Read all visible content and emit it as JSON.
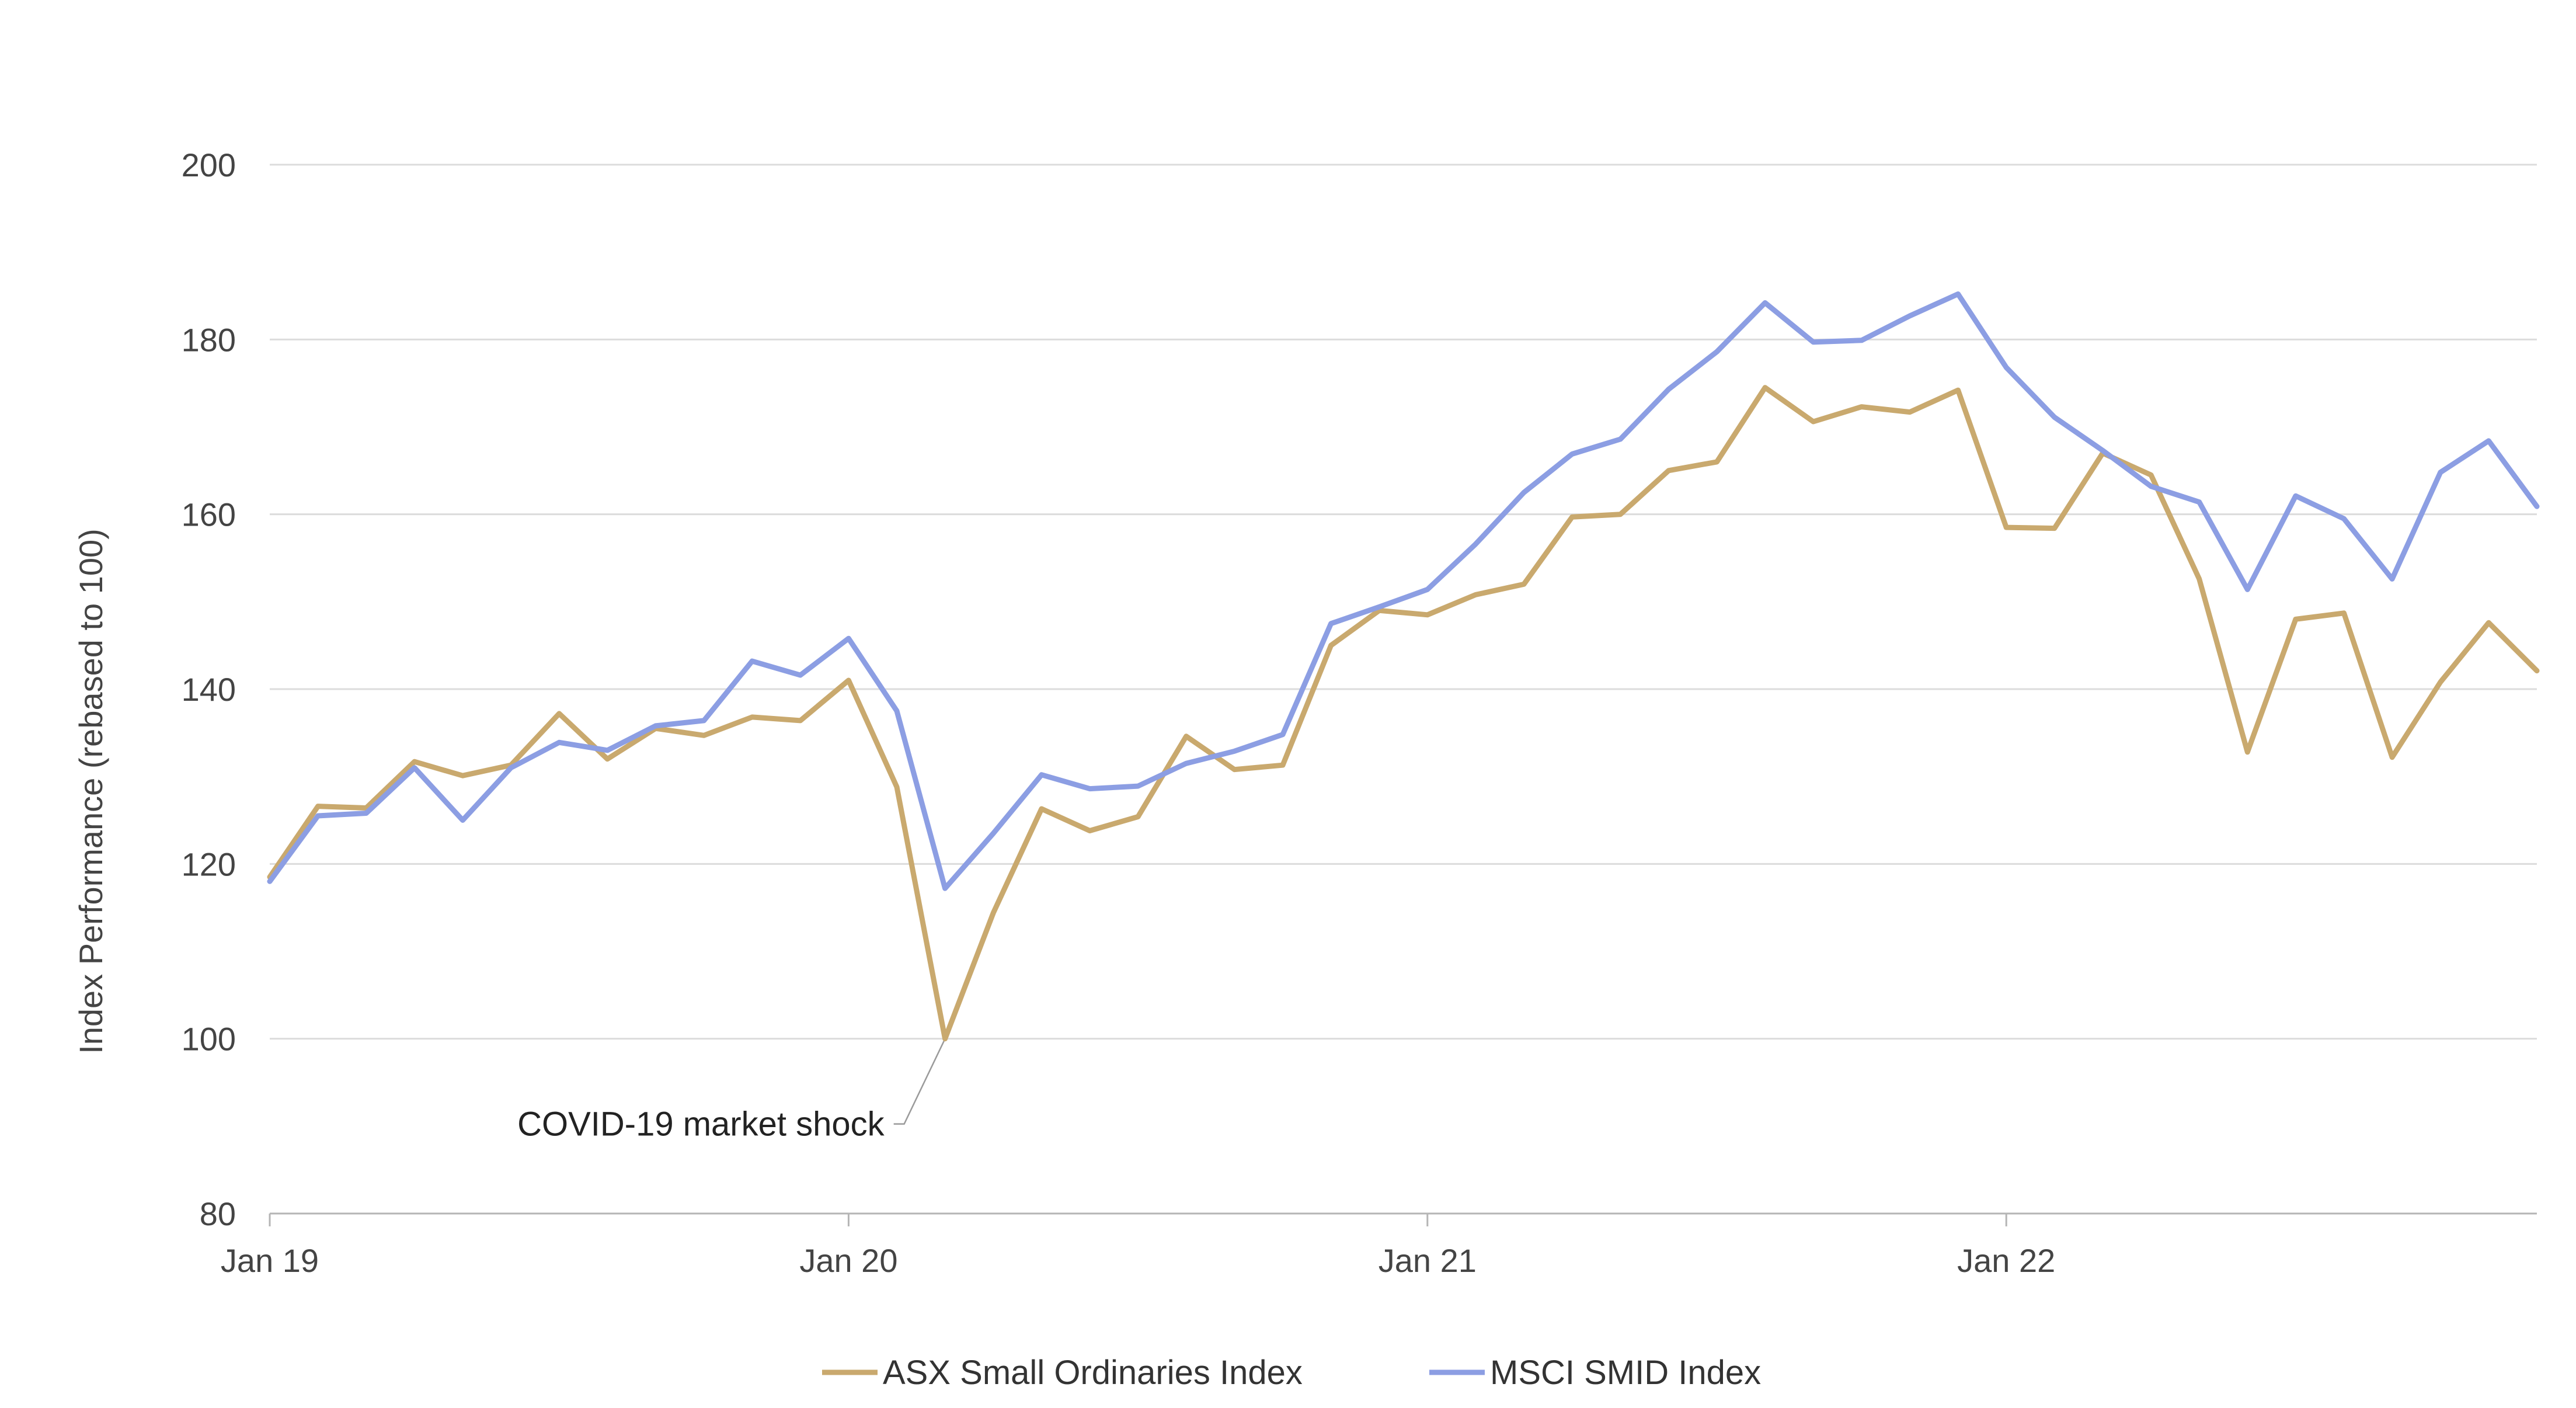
{
  "chart_data": {
    "type": "line",
    "title": "",
    "xlabel": "",
    "ylabel": "Index Performance (rebased to 100)",
    "ylim": [
      80,
      200
    ],
    "yticks": [
      80,
      100,
      120,
      140,
      160,
      180,
      200
    ],
    "xlim": [
      "2019-01",
      "2022-12"
    ],
    "xticks": [
      {
        "x": "2019-01",
        "label": "Jan 19"
      },
      {
        "x": "2020-01",
        "label": "Jan 20"
      },
      {
        "x": "2021-01",
        "label": "Jan 21"
      },
      {
        "x": "2022-01",
        "label": "Jan 22"
      }
    ],
    "grid": true,
    "legend": "bottom",
    "x": [
      "2019-01",
      "2019-02",
      "2019-03",
      "2019-04",
      "2019-05",
      "2019-06",
      "2019-07",
      "2019-08",
      "2019-09",
      "2019-10",
      "2019-11",
      "2019-12",
      "2020-01",
      "2020-02",
      "2020-03",
      "2020-04",
      "2020-05",
      "2020-06",
      "2020-07",
      "2020-08",
      "2020-09",
      "2020-10",
      "2020-11",
      "2020-12",
      "2021-01",
      "2021-02",
      "2021-03",
      "2021-04",
      "2021-05",
      "2021-06",
      "2021-07",
      "2021-08",
      "2021-09",
      "2021-10",
      "2021-11",
      "2021-12",
      "2022-01",
      "2022-02",
      "2022-03",
      "2022-04",
      "2022-05",
      "2022-06",
      "2022-07",
      "2022-08",
      "2022-09",
      "2022-10",
      "2022-11",
      "2022-12"
    ],
    "series": [
      {
        "name": "ASX Small Ordinaries Index",
        "color": "#c9a96e",
        "values": [
          118.5,
          126.6,
          126.4,
          131.7,
          130.1,
          131.3,
          137.2,
          132.0,
          135.5,
          134.7,
          136.8,
          136.4,
          141.0,
          128.8,
          100.0,
          114.4,
          126.3,
          123.8,
          125.4,
          134.6,
          130.8,
          131.3,
          145.0,
          149.0,
          148.5,
          150.8,
          152.0,
          159.7,
          160.0,
          165.0,
          166.0,
          174.5,
          170.6,
          172.3,
          171.7,
          174.2,
          158.5,
          158.4,
          167.0,
          164.5,
          152.6,
          132.8,
          148.0,
          148.7,
          132.2,
          140.8,
          147.6,
          142.1
        ]
      },
      {
        "name": "MSCI SMID Index",
        "color": "#8c9ee3",
        "values": [
          118.0,
          125.5,
          125.8,
          131.0,
          125.0,
          131.0,
          133.9,
          133.0,
          135.8,
          136.4,
          143.2,
          141.6,
          145.8,
          137.5,
          117.2,
          123.5,
          130.2,
          128.6,
          128.9,
          131.5,
          132.9,
          134.8,
          147.5,
          149.4,
          151.4,
          156.6,
          162.5,
          166.9,
          168.6,
          174.3,
          178.6,
          184.2,
          179.7,
          179.9,
          182.7,
          185.2,
          176.8,
          171.1,
          167.3,
          163.2,
          161.4,
          151.4,
          162.1,
          159.5,
          152.6,
          164.8,
          168.4,
          160.9
        ]
      }
    ],
    "annotations": [
      {
        "text": "COVID-19 market shock",
        "x": "2020-03",
        "y": 100.0
      }
    ]
  }
}
